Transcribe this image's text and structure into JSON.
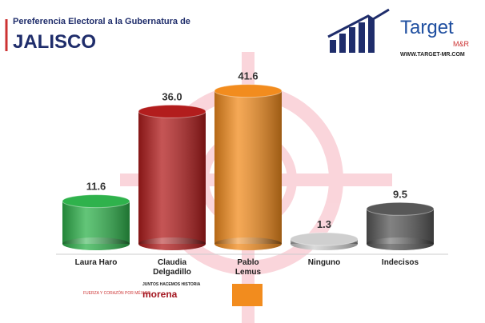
{
  "chart_data": {
    "type": "bar",
    "title": "Pereferencia Electoral a la Gubernatura de",
    "subtitle": "JALISCO",
    "categories": [
      "Laura Haro",
      "Claudia Delgadillo",
      "Pablo Lemus",
      "Ninguno",
      "Indecisos"
    ],
    "values": [
      11.6,
      36.0,
      41.6,
      1.3,
      9.5
    ],
    "value_labels": [
      "11.6",
      "36.0",
      "41.6",
      "1.3",
      "9.5"
    ],
    "colors": [
      "#2fb24c",
      "#b21d1d",
      "#f28c1e",
      "#cfcfcf",
      "#585858"
    ]
  },
  "logo": {
    "brand": "Target",
    "sub": "M&R",
    "url": "WWW.TARGET-MR.COM"
  },
  "party_logos": {
    "coalition1": "FUERZA Y CORAZÓN POR MÉXICO",
    "coalition2": "JUNTOS HACEMOS HISTORIA",
    "party2": "morena"
  }
}
